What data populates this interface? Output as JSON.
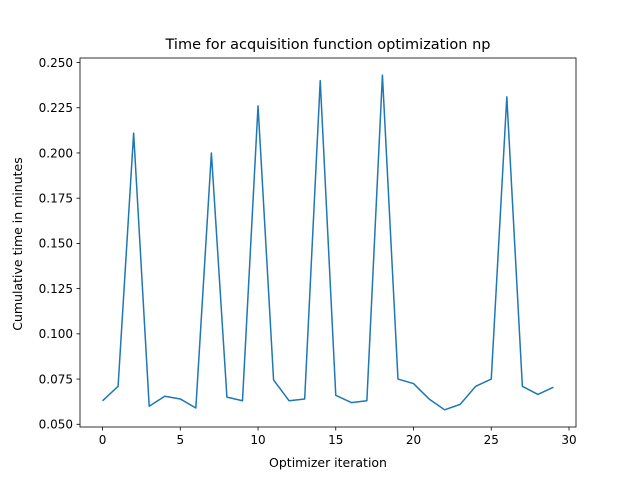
{
  "chart_data": {
    "type": "line",
    "title": "Time for acquisition function optimization np",
    "xlabel": "Optimizer iteration",
    "ylabel": "Cumulative time in minutes",
    "xlim": [
      -1.45,
      30.45
    ],
    "ylim": [
      0.0485,
      0.2525
    ],
    "x_ticks": [
      0,
      5,
      10,
      15,
      20,
      25,
      30
    ],
    "y_ticks": [
      0.05,
      0.075,
      0.1,
      0.125,
      0.15,
      0.175,
      0.2,
      0.225,
      0.25
    ],
    "x_tick_labels": [
      "0",
      "5",
      "10",
      "15",
      "20",
      "25",
      "30"
    ],
    "y_tick_labels": [
      "0.050",
      "0.075",
      "0.100",
      "0.125",
      "0.150",
      "0.175",
      "0.200",
      "0.225",
      "0.250"
    ],
    "grid": false,
    "line_color": "#1f77b4",
    "series": [
      {
        "x": [
          0,
          1,
          2,
          3,
          4,
          5,
          6,
          7,
          8,
          9,
          10,
          11,
          12,
          13,
          14,
          15,
          16,
          17,
          18,
          19,
          20,
          21,
          22,
          23,
          24,
          25,
          26,
          27,
          28,
          29
        ],
        "values": [
          0.063,
          0.071,
          0.211,
          0.06,
          0.0655,
          0.064,
          0.059,
          0.2,
          0.065,
          0.063,
          0.226,
          0.0745,
          0.063,
          0.064,
          0.24,
          0.066,
          0.062,
          0.063,
          0.243,
          0.075,
          0.0725,
          0.064,
          0.058,
          0.061,
          0.071,
          0.075,
          0.231,
          0.071,
          0.0665,
          0.0705
        ]
      }
    ]
  }
}
